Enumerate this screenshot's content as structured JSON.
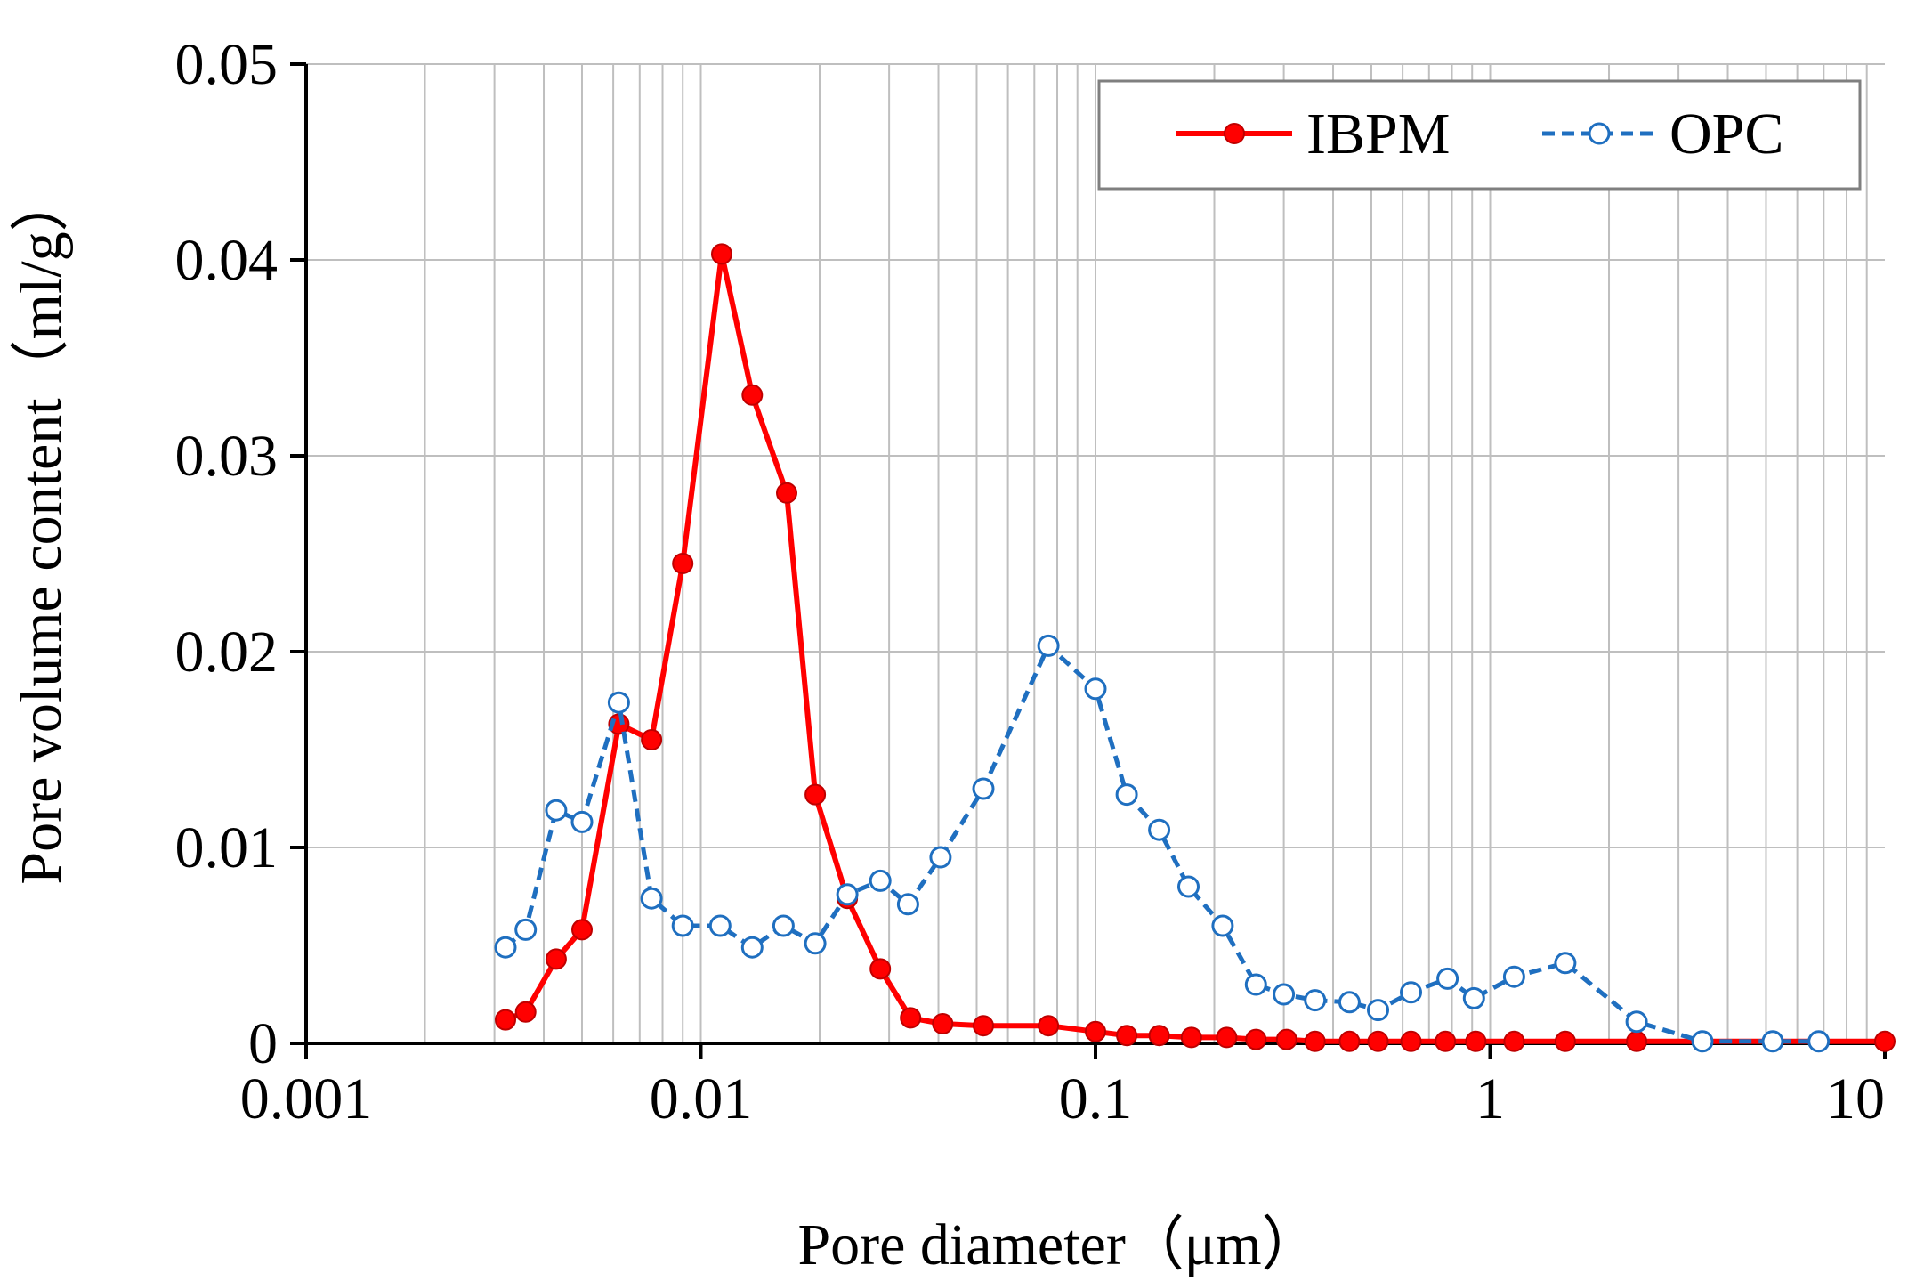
{
  "chart_data": {
    "type": "line",
    "xscale": "log",
    "xlim": [
      0.001,
      10
    ],
    "ylim": [
      0,
      0.05
    ],
    "xticks": [
      0.001,
      0.01,
      0.1,
      1,
      10
    ],
    "xtick_labels": [
      "0.001",
      "0.01",
      "0.1",
      "1",
      "10"
    ],
    "yticks": [
      0,
      0.01,
      0.02,
      0.03,
      0.04,
      0.05
    ],
    "ytick_labels": [
      "0",
      "0.01",
      "0.02",
      "0.03",
      "0.04",
      "0.05"
    ],
    "xlabel": "Pore diameter（μm）",
    "ylabel": "Pore volume content（ml/g）",
    "grid": true,
    "legend_position": "top-right",
    "series": [
      {
        "name": "IBPM",
        "color": "#ff0000",
        "marker": "filled-circle",
        "line": "solid",
        "x": [
          0.0032,
          0.0036,
          0.0043,
          0.005,
          0.0062,
          0.0075,
          0.009,
          0.0113,
          0.0135,
          0.0165,
          0.0195,
          0.0235,
          0.0285,
          0.034,
          0.041,
          0.052,
          0.076,
          0.1,
          0.12,
          0.145,
          0.175,
          0.215,
          0.255,
          0.305,
          0.36,
          0.44,
          0.52,
          0.63,
          0.77,
          0.92,
          1.15,
          1.55,
          2.35,
          3.45,
          5.2,
          6.8,
          10
        ],
        "y": [
          0.0012,
          0.0016,
          0.0043,
          0.0058,
          0.0163,
          0.0155,
          0.0245,
          0.0403,
          0.0331,
          0.0281,
          0.0127,
          0.0074,
          0.0038,
          0.0013,
          0.001,
          0.0009,
          0.0009,
          0.0006,
          0.0004,
          0.0004,
          0.0003,
          0.0003,
          0.0002,
          0.0002,
          0.0001,
          0.0001,
          0.0001,
          0.0001,
          0.0001,
          0.0001,
          0.0001,
          0.0001,
          0.0001,
          0.0001,
          0.0001,
          0.0001,
          0.0001
        ]
      },
      {
        "name": "OPC",
        "color": "#1f6fc0",
        "marker": "open-circle",
        "line": "dashed",
        "x": [
          0.0032,
          0.0036,
          0.0043,
          0.005,
          0.0062,
          0.0075,
          0.009,
          0.0112,
          0.0135,
          0.0162,
          0.0195,
          0.0235,
          0.0285,
          0.0335,
          0.0405,
          0.052,
          0.076,
          0.1,
          0.12,
          0.145,
          0.172,
          0.21,
          0.255,
          0.3,
          0.36,
          0.44,
          0.52,
          0.63,
          0.78,
          0.91,
          1.15,
          1.55,
          2.35,
          3.45,
          5.2,
          6.8
        ],
        "y": [
          0.0049,
          0.0058,
          0.0119,
          0.0113,
          0.0174,
          0.0074,
          0.006,
          0.006,
          0.0049,
          0.006,
          0.0051,
          0.0076,
          0.0083,
          0.0071,
          0.0095,
          0.013,
          0.0203,
          0.0181,
          0.0127,
          0.0109,
          0.008,
          0.006,
          0.003,
          0.0025,
          0.0022,
          0.0021,
          0.0017,
          0.0026,
          0.0033,
          0.0023,
          0.0034,
          0.0041,
          0.0011,
          0.0001,
          0.0001,
          0.0001
        ]
      }
    ]
  }
}
